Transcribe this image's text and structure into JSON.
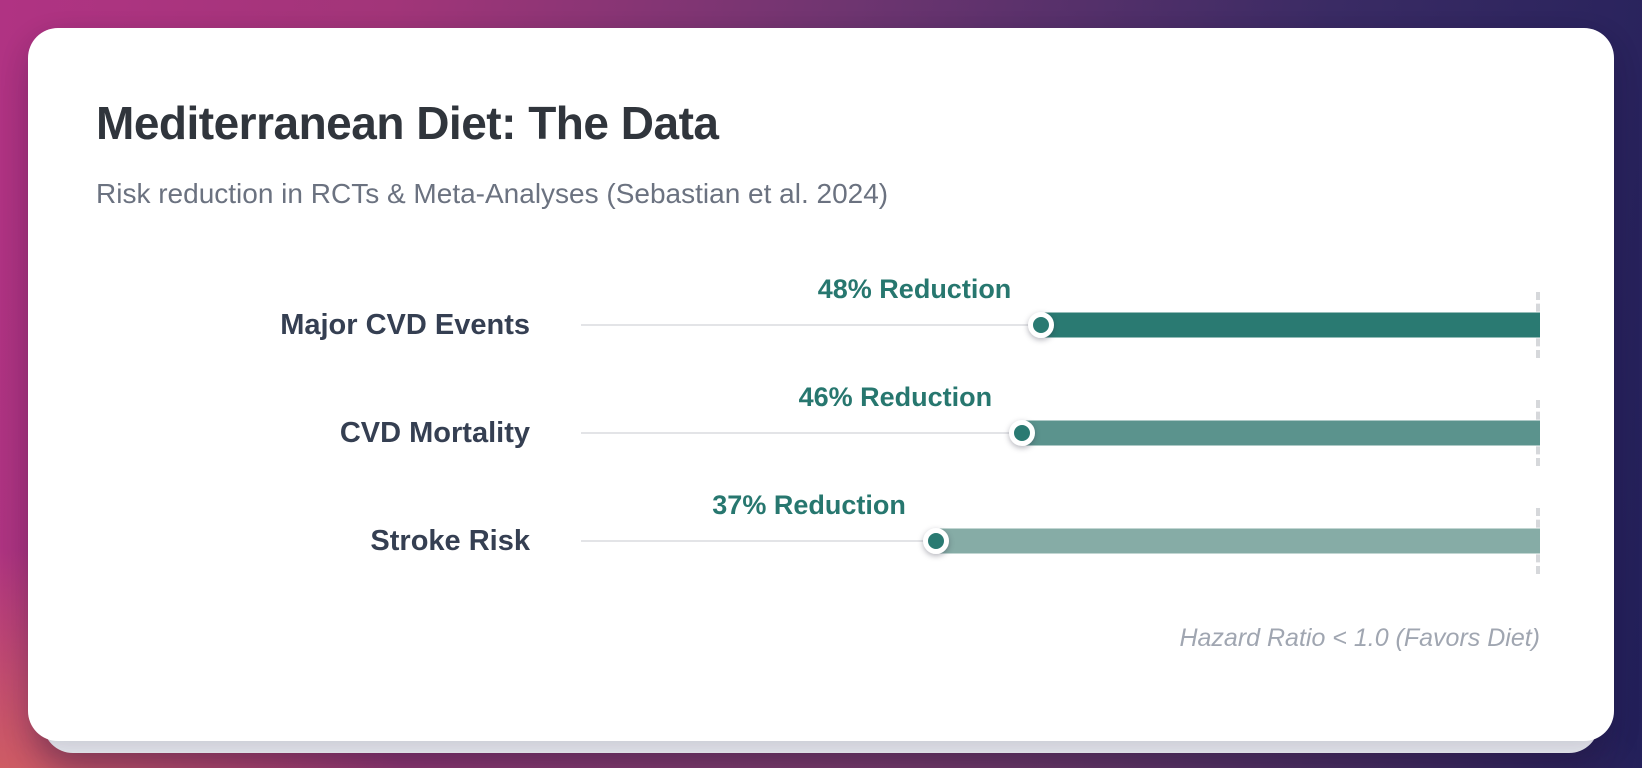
{
  "card": {
    "title": "Mediterranean Diet: The Data",
    "subtitle": "Risk reduction in RCTs & Meta-Analyses (Sebastian et al. 2024)",
    "footnote": "Hazard Ratio < 1.0 (Favors Diet)"
  },
  "chart_data": {
    "type": "bar",
    "orientation": "horizontal",
    "title": "Mediterranean Diet: The Data",
    "subtitle": "Risk reduction in RCTs & Meta-Analyses (Sebastian et al. 2024)",
    "categories": [
      "Major CVD Events",
      "CVD Mortality",
      "Stroke Risk"
    ],
    "values": [
      48,
      46,
      37
    ],
    "value_labels": [
      "48% Reduction",
      "46% Reduction",
      "37% Reduction"
    ],
    "unit": "percent risk reduction",
    "axis_note": "Hazard Ratio < 1.0 (Favors Diet)",
    "legend": "none",
    "grid": "off",
    "bar_colors": [
      "#2a7a72",
      "#5b938d",
      "#86aca6"
    ],
    "marker_color": "#2a7a72",
    "reference_line": "dashed, right end of each bar"
  },
  "colors": {
    "accent_teal_dark": "#2a7a72",
    "accent_teal_mid": "#5b938d",
    "accent_teal_light": "#86aca6",
    "title_text": "#30353c",
    "subtitle_text": "#6b7280",
    "row_label_text": "#353f52",
    "footnote_text": "#a0a6b1",
    "card_bg": "#ffffff",
    "bg_gradient_left": "#b03383",
    "bg_gradient_right": "#23205a",
    "bg_glow_bottom_left": "#de6e58"
  }
}
